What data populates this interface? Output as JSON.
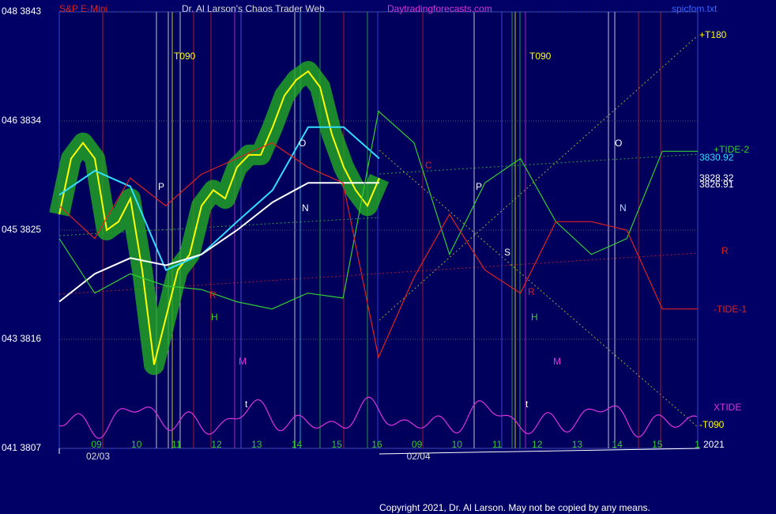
{
  "chart_data": {
    "type": "line",
    "title": "S&P E-Mini",
    "header": [
      "Dr. Al Larson's Chaos Trader Web",
      "Daytradingforecasts.com",
      "spicfom.txt"
    ],
    "copyright": "Copyright 2021, Dr. Al Larson. May not be copied by any means.",
    "ylim": [
      3807,
      3843
    ],
    "yticks": [
      {
        "value": 3843,
        "label": "048 3843"
      },
      {
        "value": 3834,
        "label": "046 3834"
      },
      {
        "value": 3825,
        "label": "045 3825"
      },
      {
        "value": 3816,
        "label": "043 3816"
      },
      {
        "value": 3807,
        "label": "041 3807"
      }
    ],
    "grid": true,
    "sessions": [
      {
        "date": "02/03",
        "hours": [
          "09",
          "10",
          "11",
          "12",
          "13",
          "14",
          "15",
          "16"
        ]
      },
      {
        "date": "02/04",
        "hours": [
          "09",
          "10",
          "11",
          "12",
          "13",
          "14",
          "15",
          "1"
        ]
      }
    ],
    "series": [
      {
        "color": "#ffff00",
        "values": [
          3826.3,
          3830.9,
          3832.2,
          3830.9,
          3825.0,
          3825.7,
          3827.6,
          3821.7,
          3813.9,
          3817.8,
          3821.7,
          3823.0,
          3827.0,
          3828.3,
          3827.6,
          3830.2,
          3831.2,
          3831.2,
          3833.5,
          3836.1,
          3837.4,
          3838.1,
          3836.8,
          3832.9,
          3830.2,
          3828.3,
          3827.0,
          3829.3
        ]
      },
      {
        "color": "#33ddff",
        "values": [
          3827.9,
          3829.9,
          3828.6,
          3821.7,
          3823.0,
          3825.7,
          3828.3,
          3833.5,
          3833.5,
          3830.9
        ]
      },
      {
        "color": "#ffffff",
        "values": [
          3819.1,
          3821.4,
          3822.7,
          3822.1,
          3823.0,
          3825.0,
          3827.3,
          3828.9,
          3828.9,
          3828.9
        ]
      },
      {
        "color": "#33cc33",
        "values": [
          3824.3,
          3819.8,
          3821.4,
          3820.4,
          3820.1,
          3819.1,
          3818.5,
          3819.8,
          3819.4,
          3834.8,
          3832.2,
          3823.0,
          3828.9,
          3830.9,
          3825.7,
          3823.0,
          3824.3,
          3831.5,
          3831.5
        ]
      },
      {
        "color": "#dd2222",
        "values": [
          3827.0,
          3824.3,
          3829.3,
          3827.0,
          3829.6,
          3830.9,
          3832.2,
          3830.2,
          3828.9,
          3814.5,
          3821.1,
          3826.3,
          3821.7,
          3819.8,
          3825.7,
          3825.7,
          3825.0,
          3818.5,
          3818.5
        ]
      }
    ],
    "annotations": [
      {
        "text": "T090",
        "color": "#ffff00"
      },
      {
        "text": "T090",
        "color": "#ffff00"
      },
      {
        "text": "P",
        "color": "#ffffff"
      },
      {
        "text": "P",
        "color": "#ffffff"
      },
      {
        "text": "O",
        "color": "#ffffff"
      },
      {
        "text": "O",
        "color": "#ffffff"
      },
      {
        "text": "N",
        "color": "#ffffff"
      },
      {
        "text": "N",
        "color": "#aaddff"
      },
      {
        "text": "M",
        "color": "#dd33dd"
      },
      {
        "text": "M",
        "color": "#dd33dd"
      },
      {
        "text": "H",
        "color": "#33cc33"
      },
      {
        "text": "H",
        "color": "#33cc33"
      },
      {
        "text": "S",
        "color": "#ffffff"
      },
      {
        "text": "R",
        "color": "#dd2222"
      },
      {
        "text": "R",
        "color": "#dd2222"
      },
      {
        "text": "C",
        "color": "#dd2222"
      },
      {
        "text": "t",
        "color": "#ffffff"
      },
      {
        "text": "t",
        "color": "#ffffff"
      },
      {
        "text": "+T180",
        "color": "#ffff00"
      },
      {
        "text": "+TIDE-2",
        "color": "#33cc33"
      },
      {
        "text": "3830.92",
        "color": "#33ddff"
      },
      {
        "text": "3828.32",
        "color": "#ffffff"
      },
      {
        "text": "3826.91",
        "color": "#ffffff"
      },
      {
        "text": "R",
        "color": "#dd2222"
      },
      {
        "text": "-TIDE-1",
        "color": "#dd2222"
      },
      {
        "text": "XTIDE",
        "color": "#dd33dd"
      },
      {
        "text": "-T090",
        "color": "#ffff00"
      },
      {
        "text": "2021",
        "color": "#ffffff"
      }
    ]
  }
}
